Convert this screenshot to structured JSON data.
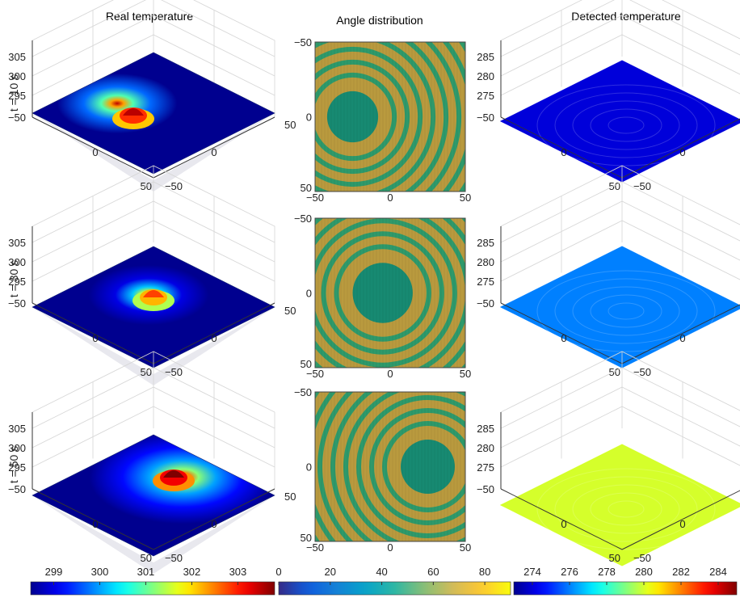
{
  "column_titles": [
    "Real temperature",
    "Angle distribution",
    "Detected temperature"
  ],
  "row_labels": [
    "t = 10 s",
    "t = 30 s",
    "t = 50 s"
  ],
  "chart_data": [
    {
      "type": "heatmap",
      "title": "Real temperature",
      "view": "3d-surface",
      "rows": [
        {
          "label": "t = 10 s",
          "peak_x": -22,
          "peak_y": -8,
          "peak_value": 303.5,
          "base_value": 294
        },
        {
          "label": "t = 30 s",
          "peak_x": -5,
          "peak_y": -5,
          "peak_value": 302.8,
          "base_value": 296
        },
        {
          "label": "t = 50 s",
          "peak_x": 15,
          "peak_y": -15,
          "peak_value": 303.8,
          "base_value": 298
        }
      ],
      "z_ticks": [
        305,
        300,
        295
      ],
      "x_ticks": [
        -50,
        0,
        50
      ],
      "y_ticks": [
        50,
        0,
        -50
      ],
      "colorbar": {
        "ticks": [
          299,
          300,
          301,
          302,
          303
        ],
        "range": [
          298.5,
          303.8
        ]
      }
    },
    {
      "type": "heatmap",
      "title": "Angle distribution",
      "view": "2d",
      "rows": [
        {
          "label": "t = 10 s",
          "center_x": -25,
          "center_y": 0,
          "radius": 17
        },
        {
          "label": "t = 30 s",
          "center_x": -5,
          "center_y": 0,
          "radius": 20
        },
        {
          "label": "t = 50 s",
          "center_x": 25,
          "center_y": 0,
          "radius": 18
        }
      ],
      "x_ticks": [
        -50,
        0,
        50
      ],
      "y_ticks": [
        -50,
        0,
        50
      ],
      "colorbar": {
        "ticks": [
          0,
          20,
          40,
          60,
          80
        ],
        "range": [
          0,
          90
        ]
      }
    },
    {
      "type": "heatmap",
      "title": "Detected temperature",
      "view": "3d-surface",
      "rows": [
        {
          "label": "t = 10 s",
          "value": 274
        },
        {
          "label": "t = 30 s",
          "value": 276
        },
        {
          "label": "t = 50 s",
          "value": 280
        }
      ],
      "z_ticks": [
        285,
        280,
        275
      ],
      "x_ticks": [
        -50,
        0,
        50
      ],
      "y_ticks": [
        50,
        0,
        -50
      ],
      "colorbar": {
        "ticks": [
          274,
          276,
          278,
          280,
          282,
          284
        ],
        "range": [
          273,
          285
        ]
      }
    }
  ],
  "colors": {
    "jet": [
      "#00008f",
      "#0000ff",
      "#0080ff",
      "#00ffff",
      "#80ff80",
      "#ffff00",
      "#ff8000",
      "#ff0000",
      "#800000"
    ],
    "parula": [
      "#352a87",
      "#0f5cdd",
      "#1481d6",
      "#06a4ca",
      "#2eb7a4",
      "#87bf77",
      "#d1bb59",
      "#fec832",
      "#f9fb0e"
    ],
    "angle_green": "#1f9a70",
    "angle_orange": "#b99a3e"
  }
}
